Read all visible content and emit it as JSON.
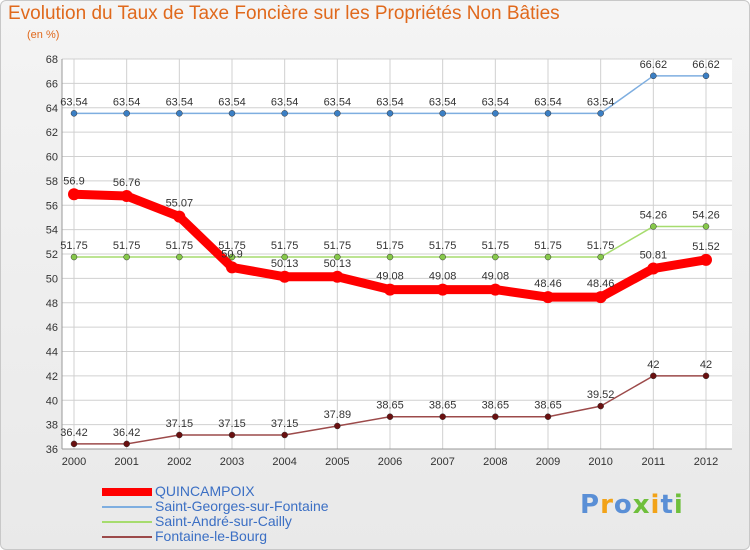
{
  "header": {
    "title": "Evolution du Taux de Taxe Foncière sur les Propriétés Non Bâties",
    "unit": "(en %)"
  },
  "logo": {
    "text": "Proxiti",
    "colors": [
      "#5a8fd6",
      "#f2a318",
      "#5a8fd6",
      "#6fbf3c",
      "#f2a318",
      "#5a8fd6",
      "#6fbf3c"
    ]
  },
  "chart_data": {
    "type": "line",
    "title": "Evolution du Taux de Taxe Foncière sur les Propriétés Non Bâties",
    "ylabel": "(en %)",
    "xlabel": "",
    "ylim": [
      36,
      68
    ],
    "ytick_step": 2,
    "grid": true,
    "legend_position": "bottom-left",
    "categories": [
      "2000",
      "2001",
      "2002",
      "2003",
      "2004",
      "2005",
      "2006",
      "2007",
      "2008",
      "2009",
      "2010",
      "2011",
      "2012"
    ],
    "series": [
      {
        "name": "QUINCAMPOIX",
        "color": "#ff0000",
        "marker": "#ff0000",
        "thick": true,
        "values": [
          56.9,
          56.76,
          55.07,
          50.9,
          50.13,
          50.13,
          49.08,
          49.08,
          49.08,
          48.46,
          48.46,
          50.81,
          51.52
        ],
        "labels": [
          "56.9",
          "56.76",
          "55.07",
          "50.9",
          "50.13",
          "50.13",
          "49.08",
          "49.08",
          "49.08",
          "48.46",
          "48.46",
          "50.81",
          "51.52"
        ]
      },
      {
        "name": "Saint-Georges-sur-Fontaine",
        "color": "#7eaee0",
        "marker": "#3b7fc4",
        "thick": false,
        "values": [
          63.54,
          63.54,
          63.54,
          63.54,
          63.54,
          63.54,
          63.54,
          63.54,
          63.54,
          63.54,
          63.54,
          66.62,
          66.62
        ],
        "labels": [
          "63.54",
          "63.54",
          "63.54",
          "63.54",
          "63.54",
          "63.54",
          "63.54",
          "63.54",
          "63.54",
          "63.54",
          "63.54",
          "66.62",
          "66.62"
        ]
      },
      {
        "name": "Saint-André-sur-Cailly",
        "color": "#a6dc6e",
        "marker": "#86c84a",
        "thick": false,
        "values": [
          51.75,
          51.75,
          51.75,
          51.75,
          51.75,
          51.75,
          51.75,
          51.75,
          51.75,
          51.75,
          51.75,
          54.26,
          54.26
        ],
        "labels": [
          "51.75",
          "51.75",
          "51.75",
          "51.75",
          "51.75",
          "51.75",
          "51.75",
          "51.75",
          "51.75",
          "51.75",
          "51.75",
          "54.26",
          "54.26"
        ]
      },
      {
        "name": "Fontaine-le-Bourg",
        "color": "#9c4a4a",
        "marker": "#6a1010",
        "thick": false,
        "values": [
          36.42,
          36.42,
          37.15,
          37.15,
          37.15,
          37.89,
          38.65,
          38.65,
          38.65,
          38.65,
          39.52,
          42,
          42
        ],
        "labels": [
          "36.42",
          "36.42",
          "37.15",
          "37.15",
          "37.15",
          "37.89",
          "38.65",
          "38.65",
          "38.65",
          "38.65",
          "39.52",
          "42",
          "42"
        ]
      }
    ]
  }
}
